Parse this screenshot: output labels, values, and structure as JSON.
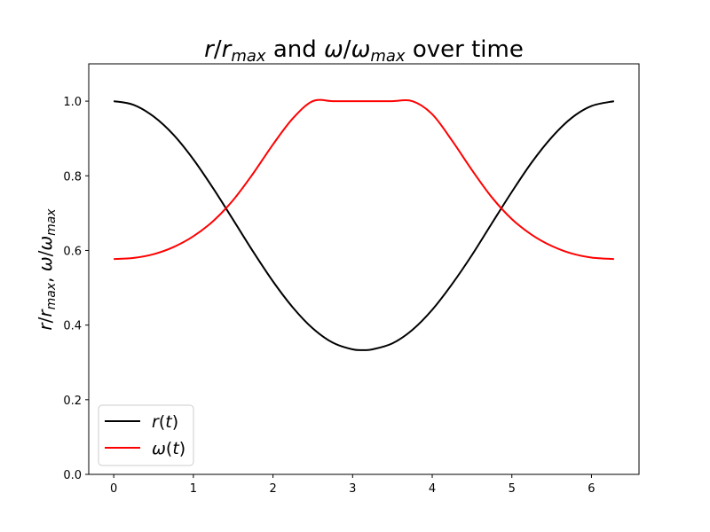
{
  "chart_data": {
    "type": "line",
    "title": {
      "r": "r",
      "slash1": "/",
      "r_max": "r",
      "max1": "max",
      "and": " and ",
      "omega": "ω",
      "slash2": "/",
      "omega_max": "ω",
      "max2": "max",
      "over_time": " over time"
    },
    "xlabel": "",
    "ylabel": {
      "r": "r",
      "slash1": "/",
      "r_max": "r",
      "max1": "max",
      "comma": ", ",
      "omega": "ω",
      "slash2": "/",
      "omega_max": "ω",
      "max2": "max"
    },
    "xlim": [
      -0.314,
      6.597
    ],
    "ylim": [
      0.0,
      1.1
    ],
    "xticks": [
      0,
      1,
      2,
      3,
      4,
      5,
      6
    ],
    "xtick_labels": [
      "0",
      "1",
      "2",
      "3",
      "4",
      "5",
      "6"
    ],
    "yticks": [
      0.0,
      0.2,
      0.4,
      0.6,
      0.8,
      1.0
    ],
    "ytick_labels": [
      "0.0",
      "0.2",
      "0.4",
      "0.6",
      "0.8",
      "1.0"
    ],
    "grid": false,
    "legend_position": "lower-left",
    "series": [
      {
        "name": "r(t)",
        "legend": {
          "fn": "r",
          "arg": "(",
          "var": "t",
          "close": ")"
        },
        "color": "#000000",
        "x": [
          0.0,
          0.25,
          0.5,
          0.75,
          1.0,
          1.25,
          1.5,
          1.75,
          2.0,
          2.25,
          2.5,
          2.75,
          3.0,
          3.1416,
          3.25,
          3.5,
          3.75,
          4.0,
          4.25,
          4.5,
          4.75,
          5.0,
          5.25,
          5.5,
          5.75,
          6.0,
          6.2832
        ],
        "y": [
          1.0,
          0.99,
          0.959,
          0.91,
          0.844,
          0.766,
          0.682,
          0.597,
          0.517,
          0.447,
          0.391,
          0.353,
          0.335,
          0.333,
          0.335,
          0.351,
          0.387,
          0.441,
          0.51,
          0.588,
          0.673,
          0.757,
          0.836,
          0.903,
          0.955,
          0.987,
          1.0
        ]
      },
      {
        "name": "ω(t)",
        "legend": {
          "fn": "ω",
          "arg": "(",
          "var": "t",
          "close": ")"
        },
        "color": "#ff0000",
        "x": [
          0.0,
          0.25,
          0.5,
          0.75,
          1.0,
          1.25,
          1.5,
          1.75,
          2.0,
          2.25,
          2.5,
          2.75,
          3.0,
          3.1416,
          3.25,
          3.5,
          3.75,
          4.0,
          4.25,
          4.5,
          4.75,
          5.0,
          5.25,
          5.5,
          5.75,
          6.0,
          6.2832
        ],
        "y": [
          0.577,
          0.58,
          0.59,
          0.609,
          0.638,
          0.679,
          0.735,
          0.806,
          0.884,
          0.954,
          1.0,
          1.0,
          1.0,
          1.0,
          1.0,
          1.0,
          1.0,
          0.965,
          0.894,
          0.815,
          0.742,
          0.684,
          0.642,
          0.612,
          0.592,
          0.581,
          0.577
        ]
      }
    ]
  }
}
